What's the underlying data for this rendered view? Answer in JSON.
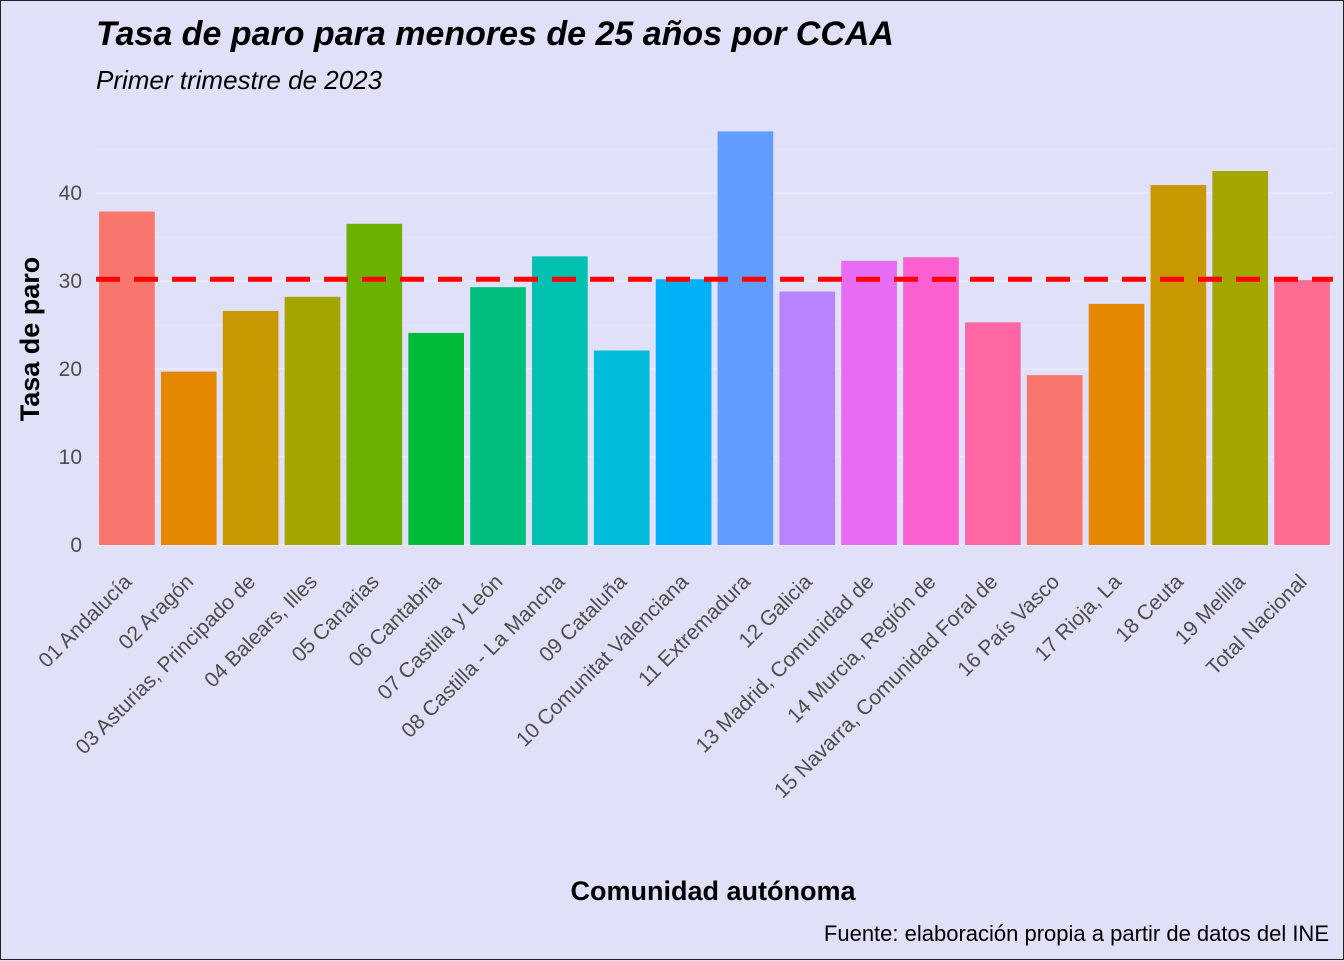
{
  "chart_data": {
    "type": "bar",
    "title": "Tasa de paro para menores de 25 años por CCAA",
    "subtitle": "Primer trimestre de 2023",
    "xlabel": "Comunidad autónoma",
    "ylabel": "Tasa de paro",
    "caption": "Fuente: elaboración propia a partir de datos del INE",
    "ylim": [
      0,
      45
    ],
    "yticks": [
      0,
      10,
      20,
      30,
      40
    ],
    "grid": true,
    "legend": "none",
    "reference_line": {
      "value": 30.2,
      "color": "#ff0000",
      "style": "dashed"
    },
    "categories": [
      "01 Andalucía",
      "02 Aragón",
      "03 Asturias, Principado de",
      "04 Balears, Illes",
      "05 Canarias",
      "06 Cantabria",
      "07 Castilla y León",
      "08 Castilla - La Mancha",
      "09 Cataluña",
      "10 Comunitat Valenciana",
      "11 Extremadura",
      "12 Galicia",
      "13 Madrid, Comunidad de",
      "14 Murcia, Región de",
      "15 Navarra, Comunidad Foral de",
      "16 País Vasco",
      "17 Rioja, La",
      "18 Ceuta",
      "19 Melilla",
      "Total Nacional"
    ],
    "values": [
      37.9,
      19.7,
      26.6,
      28.2,
      36.5,
      24.1,
      29.3,
      32.8,
      22.1,
      30.2,
      47.0,
      28.8,
      32.3,
      32.7,
      25.3,
      19.3,
      27.4,
      40.9,
      42.5,
      30.1
    ],
    "colors": [
      "#f8766d",
      "#e58700",
      "#c99800",
      "#a3a500",
      "#6bb100",
      "#00ba38",
      "#00bf7d",
      "#00c0af",
      "#00bcd8",
      "#00b0f6",
      "#619cff",
      "#b983ff",
      "#e76bf3",
      "#fd61d1",
      "#ff67a4",
      "#f8766d",
      "#e58700",
      "#c99800",
      "#a3a500",
      "#ff6c91"
    ]
  }
}
